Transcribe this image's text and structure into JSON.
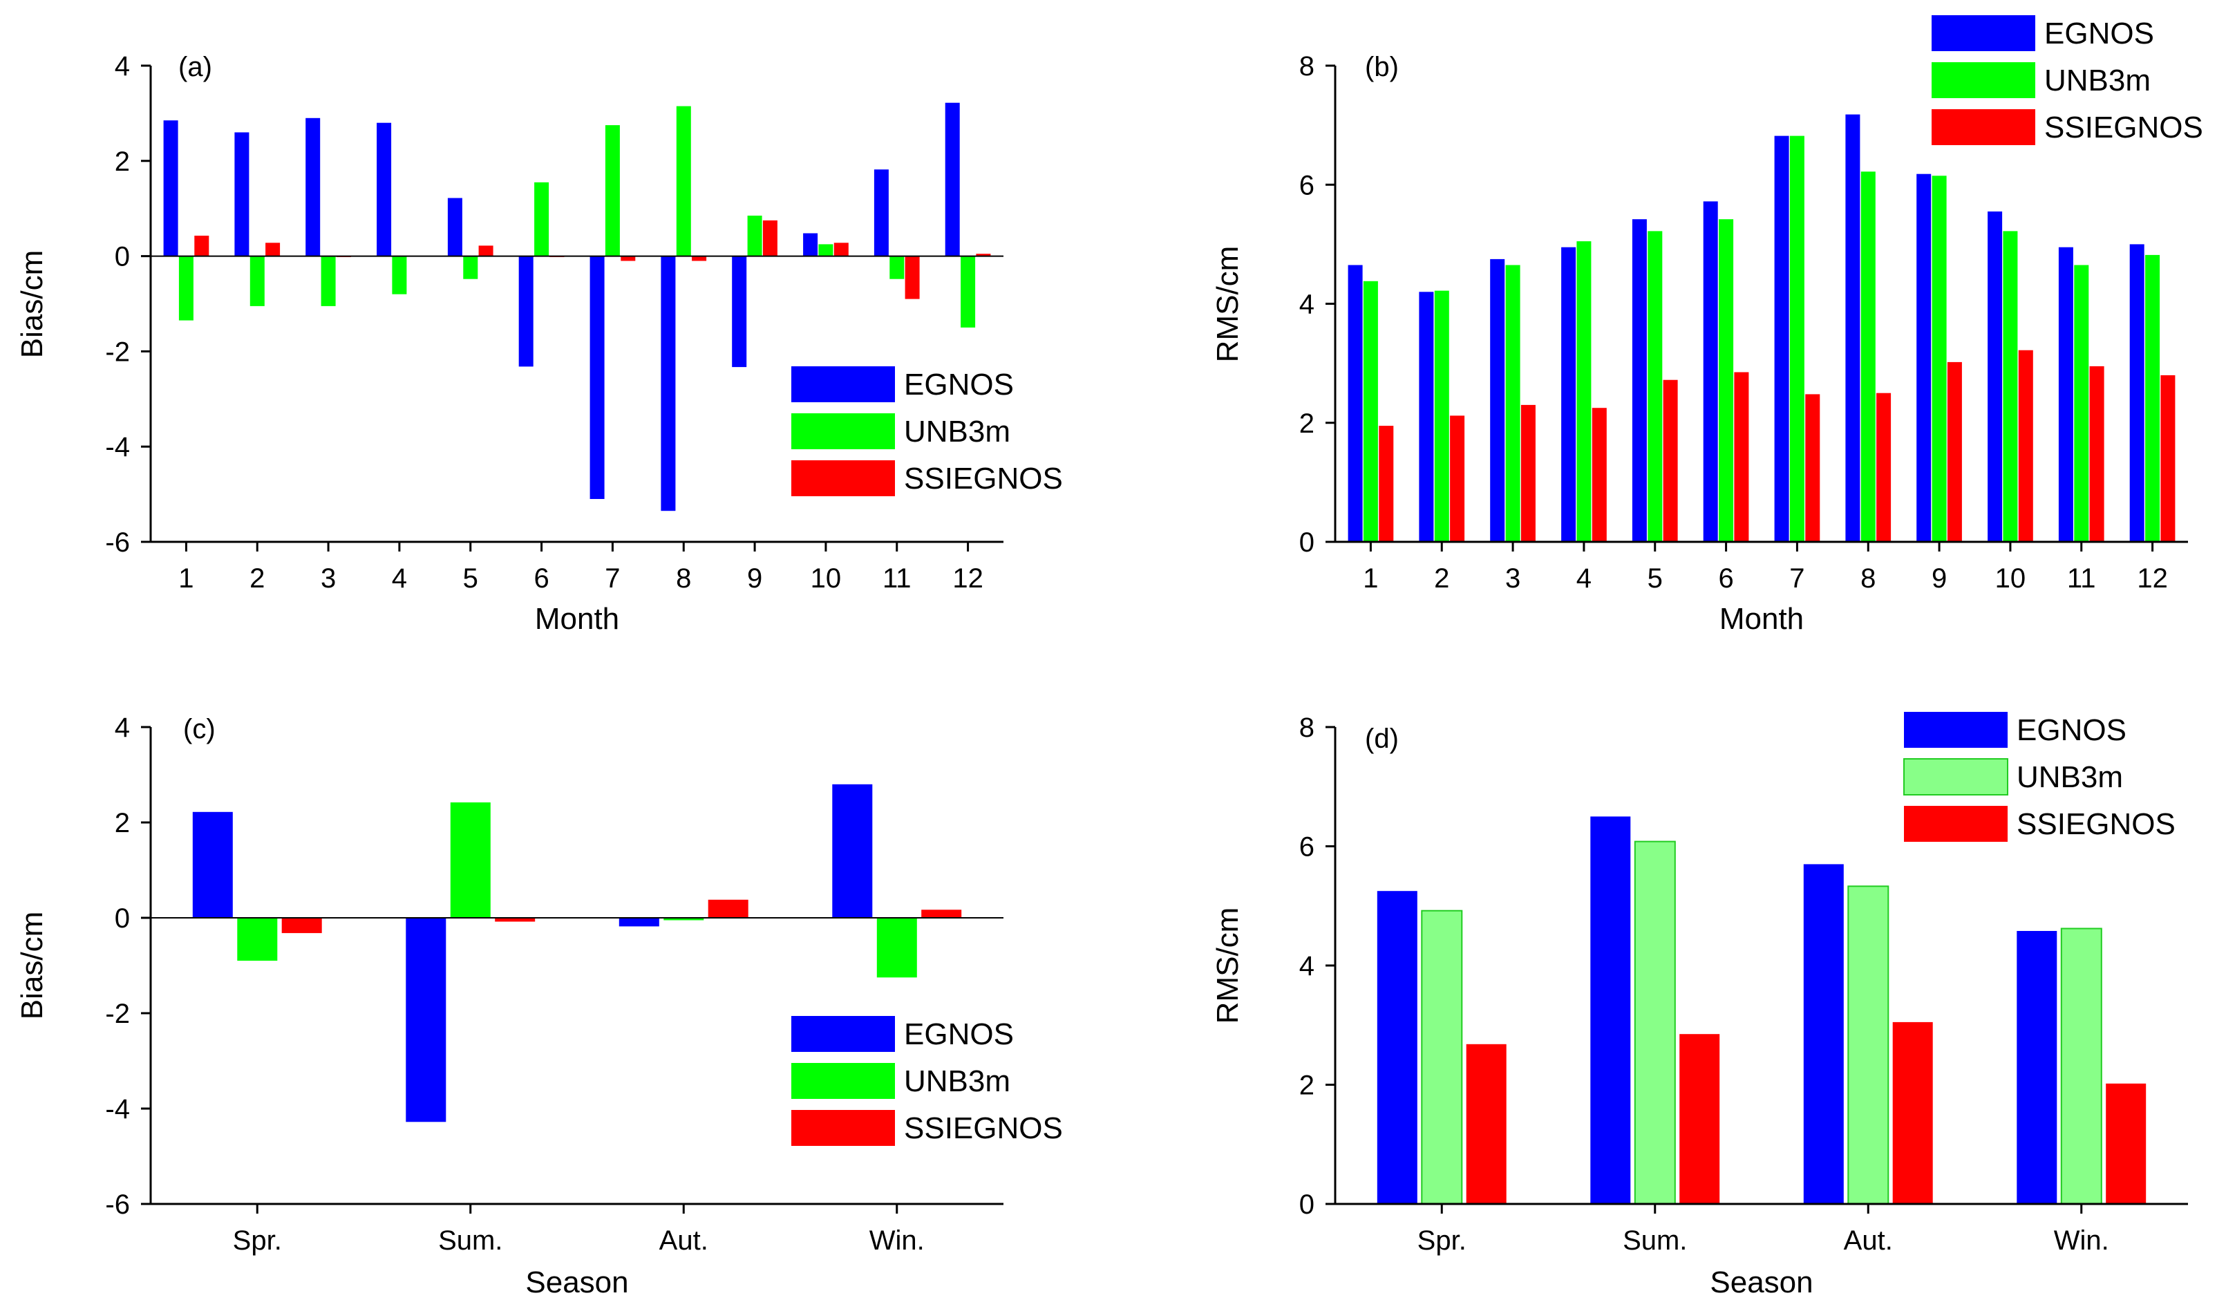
{
  "colors": {
    "EGNOS": "#0000ff",
    "UNB3m": "#00ff00",
    "UNB3m_light": "#88ff88",
    "SSIEGNOS": "#ff0000",
    "axis": "#000000"
  },
  "chart_data": [
    {
      "id": "a",
      "panel_label": "(a)",
      "type": "bar",
      "xlabel": "Month",
      "ylabel": "Bias/cm",
      "ylim": [
        -6,
        4
      ],
      "yticks": [
        -6,
        -4,
        -2,
        0,
        2,
        4
      ],
      "categories": [
        "1",
        "2",
        "3",
        "4",
        "5",
        "6",
        "7",
        "8",
        "9",
        "10",
        "11",
        "12"
      ],
      "legend_position": "bottom-right",
      "series": [
        {
          "name": "EGNOS",
          "values": [
            2.85,
            2.6,
            2.9,
            2.8,
            1.22,
            -2.32,
            -5.1,
            -5.35,
            -2.33,
            0.48,
            1.82,
            3.22
          ]
        },
        {
          "name": "UNB3m",
          "values": [
            -1.35,
            -1.05,
            -1.05,
            -0.8,
            -0.48,
            1.55,
            2.75,
            3.15,
            0.85,
            0.25,
            -0.48,
            -1.5
          ]
        },
        {
          "name": "SSIEGNOS",
          "values": [
            0.43,
            0.28,
            -0.02,
            0.0,
            0.22,
            -0.02,
            -0.1,
            -0.1,
            0.75,
            0.28,
            -0.9,
            0.05
          ]
        }
      ]
    },
    {
      "id": "b",
      "panel_label": "(b)",
      "type": "bar",
      "xlabel": "Month",
      "ylabel": "RMS/cm",
      "ylim": [
        0,
        8
      ],
      "yticks": [
        0,
        2,
        4,
        6,
        8
      ],
      "categories": [
        "1",
        "2",
        "3",
        "4",
        "5",
        "6",
        "7",
        "8",
        "9",
        "10",
        "11",
        "12"
      ],
      "legend_position": "top-right",
      "series": [
        {
          "name": "EGNOS",
          "values": [
            4.65,
            4.2,
            4.75,
            4.95,
            5.42,
            5.72,
            6.82,
            7.18,
            6.18,
            5.55,
            4.95,
            5.0
          ]
        },
        {
          "name": "UNB3m",
          "values": [
            4.38,
            4.22,
            4.65,
            5.05,
            5.22,
            5.42,
            6.82,
            6.22,
            6.15,
            5.22,
            4.65,
            4.82
          ]
        },
        {
          "name": "SSIEGNOS",
          "values": [
            1.95,
            2.12,
            2.3,
            2.25,
            2.72,
            2.85,
            2.48,
            2.5,
            3.02,
            3.22,
            2.95,
            2.8
          ]
        }
      ]
    },
    {
      "id": "c",
      "panel_label": "(c)",
      "type": "bar",
      "xlabel": "Season",
      "ylabel": "Bias/cm",
      "ylim": [
        -6,
        4
      ],
      "yticks": [
        -6,
        -4,
        -2,
        0,
        2,
        4
      ],
      "categories": [
        "Spr.",
        "Sum.",
        "Aut.",
        "Win."
      ],
      "legend_position": "bottom-right",
      "series": [
        {
          "name": "EGNOS",
          "values": [
            2.22,
            -4.28,
            -0.18,
            2.8
          ]
        },
        {
          "name": "UNB3m",
          "values": [
            -0.9,
            2.42,
            -0.05,
            -1.25
          ]
        },
        {
          "name": "SSIEGNOS",
          "values": [
            -0.32,
            -0.08,
            0.38,
            0.17
          ]
        }
      ]
    },
    {
      "id": "d",
      "panel_label": "(d)",
      "type": "bar",
      "xlabel": "Season",
      "ylabel": "RMS/cm",
      "ylim": [
        0,
        8
      ],
      "yticks": [
        0,
        2,
        4,
        6,
        8
      ],
      "categories": [
        "Spr.",
        "Sum.",
        "Aut.",
        "Win."
      ],
      "legend_position": "top-right",
      "series": [
        {
          "name": "EGNOS",
          "values": [
            5.25,
            6.5,
            5.7,
            4.58
          ]
        },
        {
          "name": "UNB3m",
          "values": [
            4.92,
            6.08,
            5.33,
            4.62
          ]
        },
        {
          "name": "SSIEGNOS",
          "values": [
            2.68,
            2.85,
            3.05,
            2.02
          ]
        }
      ]
    }
  ]
}
